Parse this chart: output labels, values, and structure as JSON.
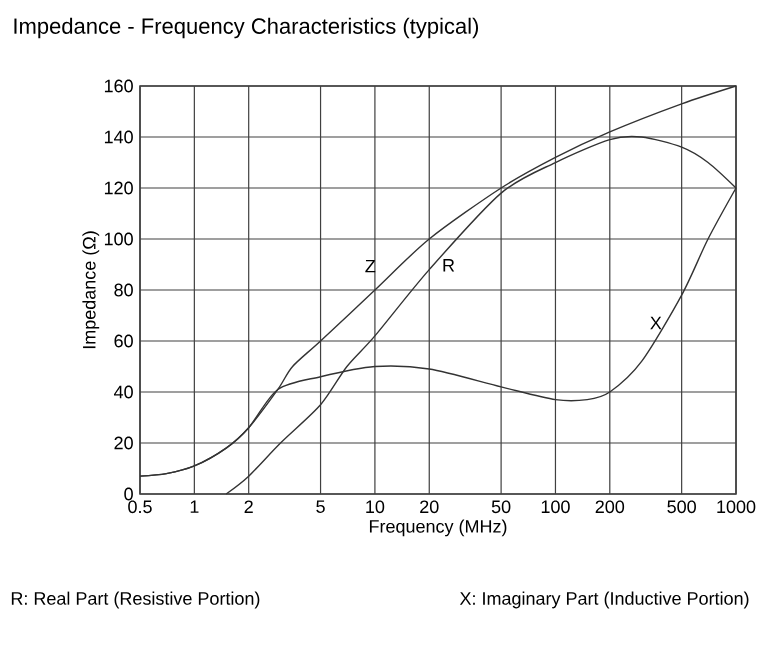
{
  "chart_data": {
    "type": "line",
    "title": "Impedance - Frequency Characteristics (typical)",
    "xlabel": "Frequency (MHz)",
    "ylabel": "Impedance (Ω)",
    "log": "x",
    "grid": true,
    "marker": "none",
    "line_style": "solid",
    "xlim": [
      0.5,
      1000
    ],
    "xticks": [
      0.5,
      1,
      2,
      5,
      10,
      20,
      50,
      100,
      200,
      500,
      1000
    ],
    "ylim": [
      0,
      160
    ],
    "yticks": [
      0,
      20,
      40,
      60,
      80,
      100,
      120,
      140,
      160
    ],
    "series": [
      {
        "name": "Z",
        "color": "#333333",
        "x": [
          0.5,
          0.7,
          1,
          1.5,
          2,
          2.9,
          3.5,
          5,
          10,
          20,
          50,
          100,
          200,
          500,
          1000
        ],
        "values": [
          7,
          8,
          11,
          18,
          26,
          41,
          50,
          60,
          80,
          100,
          120,
          132,
          142,
          153,
          160
        ]
      },
      {
        "name": "R",
        "color": "#333333",
        "x": [
          1.5,
          2,
          3,
          5,
          7,
          10,
          20,
          50,
          100,
          200,
          300,
          500,
          700,
          1000
        ],
        "values": [
          0,
          7,
          20,
          35,
          50,
          62,
          88,
          118,
          130,
          139,
          140,
          136,
          130,
          120
        ]
      },
      {
        "name": "X",
        "color": "#333333",
        "x": [
          0.5,
          0.7,
          1,
          1.5,
          2,
          2.9,
          5,
          10,
          20,
          50,
          100,
          150,
          200,
          300,
          500,
          700,
          1000
        ],
        "values": [
          7,
          8,
          11,
          18,
          26,
          41,
          46,
          50,
          49,
          42,
          37,
          37,
          40,
          52,
          78,
          100,
          120
        ]
      }
    ],
    "annotations": [
      "R: Real Part (Resistive Portion)",
      "X: Imaginary Part (Inductive Portion)"
    ]
  }
}
